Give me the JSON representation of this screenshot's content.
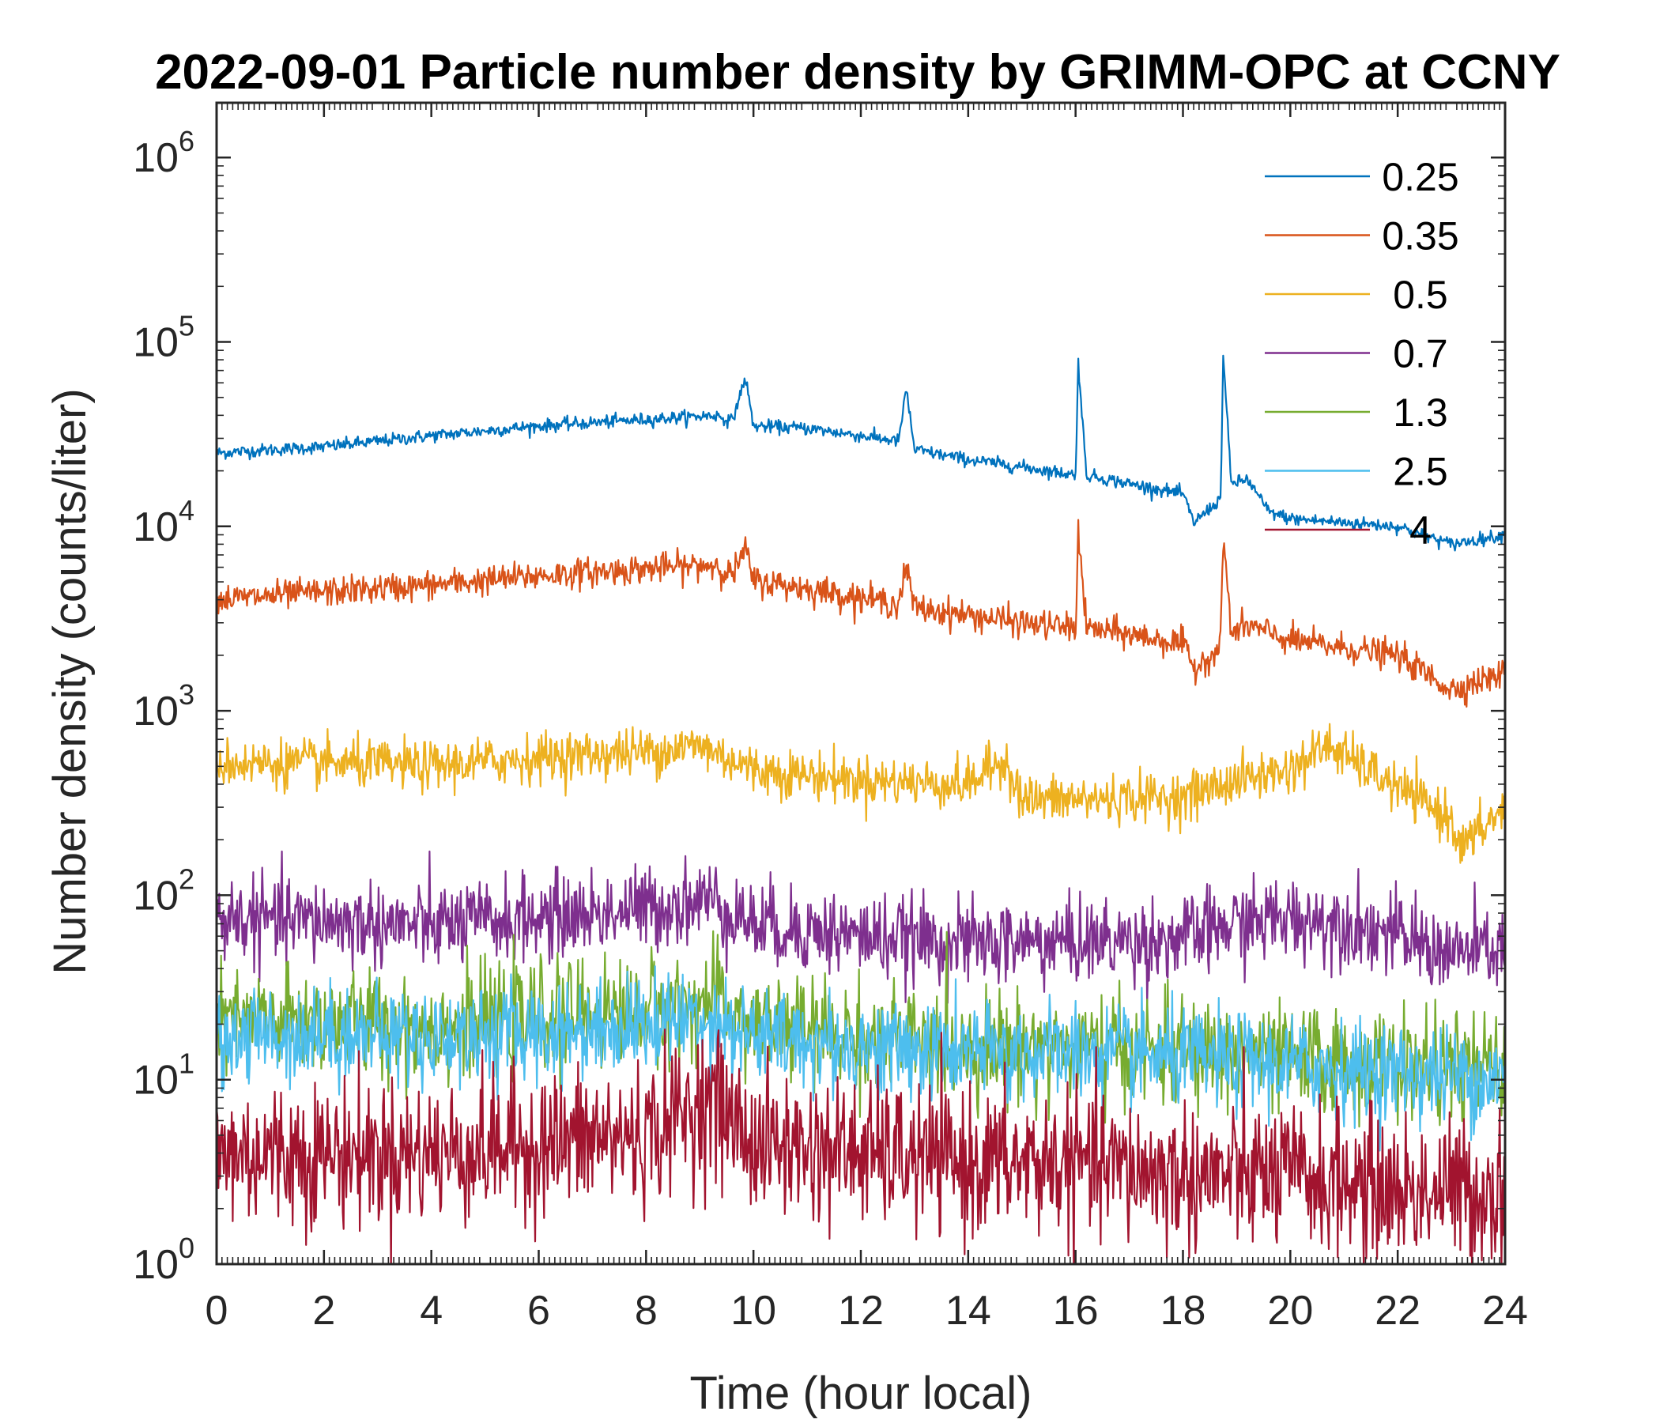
{
  "chart_data": {
    "type": "line",
    "title": "2022-09-01 Particle number density by GRIMM-OPC at CCNY",
    "xlabel": "Time (hour local)",
    "ylabel": "Number density (counts/liter)",
    "xlim": [
      0,
      24
    ],
    "ylim": [
      1,
      2000000
    ],
    "yscale": "log",
    "x_ticks": [
      "0",
      "2",
      "4",
      "6",
      "8",
      "10",
      "12",
      "14",
      "16",
      "18",
      "20",
      "22",
      "24"
    ],
    "y_ticks": [
      {
        "base": "10",
        "exp": "0"
      },
      {
        "base": "10",
        "exp": "1"
      },
      {
        "base": "10",
        "exp": "2"
      },
      {
        "base": "10",
        "exp": "3"
      },
      {
        "base": "10",
        "exp": "4"
      },
      {
        "base": "10",
        "exp": "5"
      },
      {
        "base": "10",
        "exp": "6"
      }
    ],
    "legend_position": "top-right",
    "series": [
      {
        "name": "0.25",
        "color": "#0072BD",
        "x": [
          0,
          2,
          4,
          6,
          8,
          9.3,
          9.6,
          9.85,
          10.0,
          11,
          12,
          12.7,
          12.85,
          13.0,
          14,
          15,
          16,
          16.05,
          16.2,
          17,
          18,
          18.2,
          18.7,
          18.75,
          18.9,
          19.2,
          19.6,
          20,
          22,
          23,
          24
        ],
        "values": [
          25000,
          27000,
          31000,
          35000,
          38000,
          40000,
          37000,
          64000,
          35000,
          34000,
          31000,
          29000,
          55000,
          26000,
          23000,
          21000,
          19000,
          78000,
          19000,
          17000,
          15000,
          10500,
          14000,
          84000,
          17000,
          18000,
          12000,
          11000,
          10000,
          8000,
          9000
        ],
        "noise": 0.04
      },
      {
        "name": "0.35",
        "color": "#D95319",
        "x": [
          0,
          2,
          4,
          6,
          8,
          9.3,
          9.6,
          9.85,
          10.0,
          11,
          12,
          12.7,
          12.85,
          13.0,
          14,
          15,
          16,
          16.05,
          16.2,
          17,
          18,
          18.2,
          18.7,
          18.75,
          18.9,
          19.2,
          20,
          22,
          23,
          24
        ],
        "values": [
          4000,
          4400,
          4800,
          5400,
          5900,
          6200,
          5400,
          7500,
          5100,
          4600,
          4100,
          3800,
          6000,
          3600,
          3300,
          3000,
          2800,
          9500,
          2800,
          2600,
          2300,
          1700,
          2200,
          9300,
          2600,
          2900,
          2400,
          2000,
          1300,
          1600
        ],
        "noise": 0.09
      },
      {
        "name": "0.5",
        "color": "#EDB120",
        "x": [
          0,
          2,
          4,
          6,
          8,
          9.0,
          10,
          12,
          14,
          14.7,
          15,
          16,
          18,
          19,
          20,
          20.7,
          22,
          23,
          23.2,
          24
        ],
        "values": [
          520,
          520,
          500,
          560,
          600,
          650,
          480,
          420,
          400,
          550,
          330,
          330,
          340,
          420,
          480,
          650,
          380,
          260,
          180,
          300
        ],
        "noise": 0.15
      },
      {
        "name": "0.7",
        "color": "#7E2F8E",
        "x": [
          0,
          2,
          4,
          6,
          8,
          9.2,
          10,
          12,
          14,
          16,
          18,
          19,
          20,
          21,
          22,
          23,
          24
        ],
        "values": [
          75,
          72,
          68,
          75,
          85,
          95,
          70,
          60,
          55,
          56,
          58,
          70,
          75,
          72,
          60,
          48,
          52
        ],
        "noise": 0.26
      },
      {
        "name": "1.3",
        "color": "#77AC30",
        "x": [
          0,
          2,
          4,
          6,
          8,
          9.2,
          10,
          12,
          14,
          16,
          18,
          20,
          22,
          24
        ],
        "values": [
          20,
          21,
          19,
          22,
          24,
          26,
          20,
          17,
          15,
          15,
          14,
          13,
          12,
          11
        ],
        "noise": 0.33
      },
      {
        "name": "2.5",
        "color": "#4DBEEE",
        "x": [
          0,
          2,
          4,
          6,
          8,
          9.2,
          10,
          12,
          14,
          16,
          18,
          20,
          22,
          24
        ],
        "values": [
          17,
          18,
          17,
          18,
          20,
          22,
          17,
          15,
          14,
          14,
          13,
          12,
          11,
          10
        ],
        "noise": 0.3
      },
      {
        "name": "4",
        "color": "#A2142F",
        "x": [
          0,
          2,
          4,
          6,
          8,
          9.2,
          10,
          12,
          14,
          16,
          18,
          20,
          22,
          24
        ],
        "values": [
          4,
          4,
          4,
          4.5,
          5,
          8,
          4.5,
          4,
          3.5,
          3.5,
          3,
          3,
          2.5,
          2.5
        ],
        "noise": 0.45
      }
    ]
  }
}
